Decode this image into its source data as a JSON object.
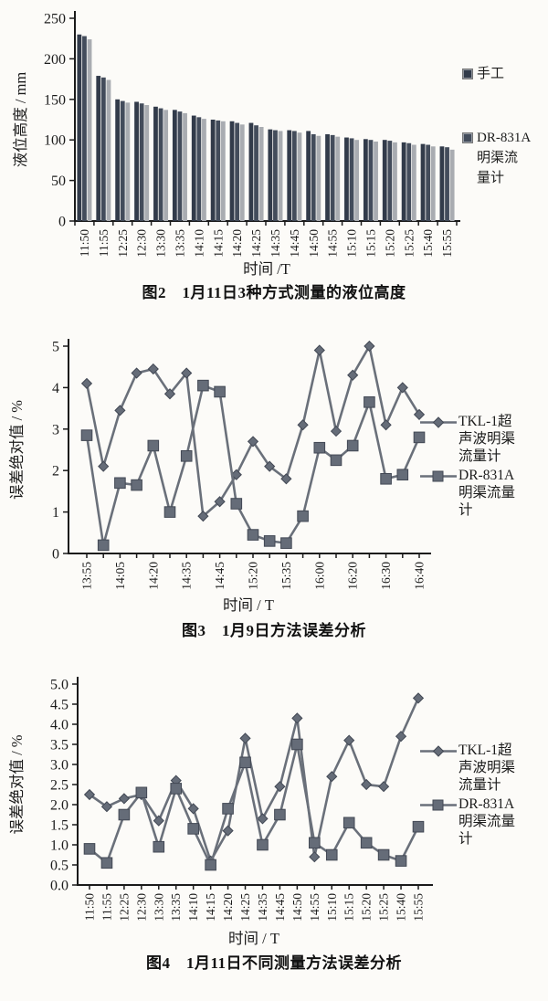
{
  "colors": {
    "axis": "#1a1a1a",
    "text": "#1b1b1b",
    "line": "#6a707a",
    "marker_fill": "#656c78",
    "marker_stroke": "#424854",
    "bar_dark": "#323b4a",
    "bar_mid": "#434c5b",
    "bar_light": "#a9acb1",
    "paper": "#fcfbf8"
  },
  "chart_data": [
    {
      "type": "bar",
      "caption": "图2　1月11日3种方式测量的液位高度",
      "xlabel": "时间 /T",
      "ylabel": "液位高度 / mm",
      "ylim": [
        0,
        250
      ],
      "yticks": [
        "0",
        "50",
        "100",
        "150",
        "200",
        "250"
      ],
      "grid": false,
      "legend_position": "right",
      "categories": [
        "11:50",
        "11:55",
        "12:25",
        "12:30",
        "13:30",
        "13:35",
        "14:10",
        "14:15",
        "14:20",
        "14:25",
        "14:35",
        "14:45",
        "14:50",
        "14:55",
        "15:10",
        "15:15",
        "15:20",
        "15:25",
        "15:40",
        "15:55"
      ],
      "series": [
        {
          "name": "手工",
          "values": [
            230,
            179,
            150,
            147,
            141,
            137,
            130,
            125,
            123,
            121,
            113,
            112,
            111,
            107,
            103,
            101,
            100,
            97,
            95,
            92
          ]
        },
        {
          "name": "",
          "values": [
            228,
            177,
            148,
            145,
            139,
            135,
            128,
            124,
            121,
            118,
            112,
            111,
            107,
            106,
            102,
            100,
            99,
            96,
            94,
            91
          ]
        },
        {
          "name": "DR-831A明渠流量计",
          "values": [
            224,
            174,
            146,
            143,
            137,
            133,
            126,
            123,
            119,
            116,
            111,
            109,
            105,
            104,
            100,
            98,
            97,
            94,
            92,
            88
          ]
        }
      ],
      "legend": [
        {
          "label": "手工"
        },
        {
          "label": "DR-831A\n明渠流\n量计"
        }
      ]
    },
    {
      "type": "line",
      "caption": "图3　1月9日方法误差分析",
      "xlabel": "时间 / T",
      "ylabel": "误差绝对值 / %",
      "ylim": [
        0,
        5
      ],
      "yticks": [
        "0",
        "1",
        "2",
        "3",
        "4",
        "5"
      ],
      "grid": false,
      "legend_position": "right",
      "xticklabels": [
        "13:55",
        "",
        "14:05",
        "",
        "14:20",
        "",
        "14:35",
        "",
        "14:45",
        "",
        "15:20",
        "",
        "15:35",
        "",
        "16:00",
        "",
        "16:20",
        "",
        "16:30",
        "",
        "16:40"
      ],
      "series": [
        {
          "name": "TKL-1超声波明渠流量计",
          "marker": "diamond",
          "values": [
            4.1,
            2.1,
            3.45,
            4.35,
            4.45,
            3.85,
            4.35,
            0.9,
            1.25,
            1.9,
            2.7,
            2.1,
            1.8,
            3.1,
            4.9,
            2.95,
            4.3,
            5.0,
            3.1,
            4.0,
            3.35
          ]
        },
        {
          "name": "DR-831A明渠流量计",
          "marker": "square",
          "values": [
            2.85,
            0.2,
            1.7,
            1.65,
            2.6,
            1.0,
            2.35,
            4.05,
            3.9,
            1.2,
            0.45,
            0.3,
            0.25,
            0.9,
            2.55,
            2.25,
            2.6,
            3.65,
            1.8,
            1.9,
            2.8
          ]
        }
      ],
      "legend": [
        {
          "label": "TKL-1超\n声波明渠\n流量计",
          "marker": "diamond"
        },
        {
          "label": "DR-831A\n明渠流量\n计",
          "marker": "square"
        }
      ]
    },
    {
      "type": "line",
      "caption": "图4　1月11日不同测量方法误差分析",
      "xlabel": "时间 / T",
      "ylabel": "误差绝对值 / %",
      "ylim": [
        0,
        5
      ],
      "yticks": [
        "0.0",
        "0.5",
        "1.0",
        "1.5",
        "2.0",
        "2.5",
        "3.0",
        "3.5",
        "4.0",
        "4.5",
        "5.0"
      ],
      "grid": false,
      "legend_position": "right",
      "categories": [
        "11:50",
        "11:55",
        "12:25",
        "12:30",
        "13:30",
        "13:35",
        "14:10",
        "14:15",
        "14:20",
        "14:25",
        "14:35",
        "14:45",
        "14:50",
        "14:55",
        "15:10",
        "15:15",
        "15:20",
        "15:25",
        "15:40",
        "15:55"
      ],
      "series": [
        {
          "name": "TKL-1超声波明渠流量计",
          "marker": "diamond",
          "values": [
            2.25,
            1.95,
            2.15,
            2.25,
            1.6,
            2.6,
            1.9,
            0.6,
            1.35,
            3.65,
            1.65,
            2.45,
            4.15,
            0.7,
            2.7,
            3.6,
            2.5,
            2.45,
            3.7,
            4.65
          ]
        },
        {
          "name": "DR-831A明渠流量计",
          "marker": "square",
          "values": [
            0.9,
            0.55,
            1.75,
            2.3,
            0.95,
            2.4,
            1.4,
            0.5,
            1.9,
            3.05,
            1.0,
            1.75,
            3.5,
            1.05,
            0.75,
            1.55,
            1.05,
            0.75,
            0.6,
            1.45
          ]
        }
      ],
      "legend": [
        {
          "label": "TKL-1超\n声波明渠\n流量计",
          "marker": "diamond"
        },
        {
          "label": "DR-831A\n明渠流量\n计",
          "marker": "square"
        }
      ]
    }
  ]
}
